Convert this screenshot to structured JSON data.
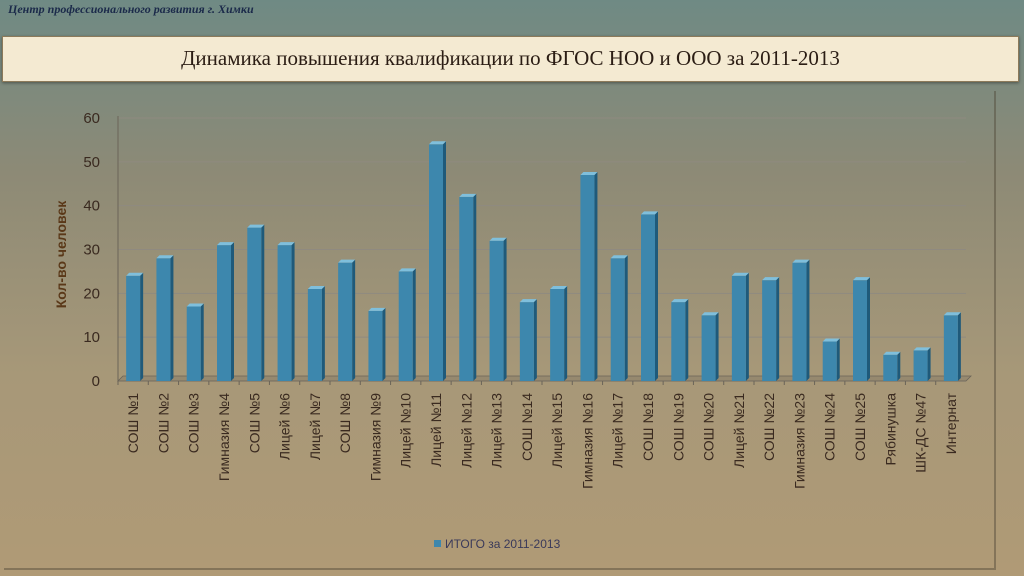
{
  "header": {
    "org_name": "Центр профессионального развития г. Химки",
    "title": "Динамика повышения квалификации по ФГОС НОО и ООО за 2011-2013"
  },
  "colors": {
    "bar": "#3d87ad",
    "bar_side": "#1f5a7a",
    "bar_top": "#7fbfdc",
    "grid": "#8f8a80",
    "tick_text": "#3a2a20"
  },
  "chart_data": {
    "type": "bar",
    "ylabel": "Кол-во человек",
    "ylim": [
      0,
      60
    ],
    "yticks": [
      0,
      10,
      20,
      30,
      40,
      50,
      60
    ],
    "grid": true,
    "legend_position": "bottom",
    "categories": [
      "СОШ №1",
      "СОШ №2",
      "СОШ №3",
      "Гимназия №4",
      "СОШ №5",
      "Лицей №6",
      "Лицей №7",
      "СОШ №8",
      "Гимназия №9",
      "Лицей №10",
      "Лицей №11",
      "Лицей №12",
      "Лицей №13",
      "СОШ №14",
      "Лицей №15",
      "Гимназия №16",
      "Лицей №17",
      "СОШ №18",
      "СОШ №19",
      "СОШ №20",
      "Лицей №21",
      "СОШ №22",
      "Гимназия №23",
      "СОШ №24",
      "СОШ №25",
      "Рябинушка",
      "ШК-ДС №47",
      "Интернат"
    ],
    "series": [
      {
        "name": "ИТОГО за 2011-2013",
        "values": [
          24,
          28,
          17,
          31,
          35,
          31,
          21,
          27,
          16,
          25,
          54,
          42,
          32,
          18,
          21,
          47,
          28,
          38,
          18,
          15,
          24,
          23,
          27,
          9,
          23,
          6,
          7,
          15
        ]
      }
    ]
  }
}
